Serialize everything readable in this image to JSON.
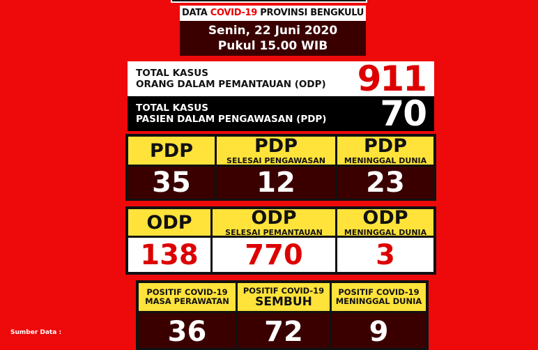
{
  "header": {
    "title_pre": "DATA ",
    "title_red": "COVID-19",
    "title_post": " PROVINSI BENGKULU",
    "date": "Senin, 22 Juni 2020",
    "time": "Pukul 15.00 WIB"
  },
  "totals": {
    "odp": {
      "line1": "TOTAL KASUS",
      "line2": "ORANG DALAM PEMANTAUAN (ODP)",
      "value": "911"
    },
    "pdp": {
      "line1": "TOTAL KASUS",
      "line2": "PASIEN DALAM PENGAWASAN (PDP)",
      "value": "70"
    }
  },
  "pdp_panel": [
    {
      "title": "PDP",
      "sub": "",
      "value": "35"
    },
    {
      "title": "PDP",
      "sub": "SELESAI PENGAWASAN",
      "value": "12"
    },
    {
      "title": "PDP",
      "sub": "MENINGGAL DUNIA",
      "value": "23"
    }
  ],
  "odp_panel": [
    {
      "title": "ODP",
      "sub": "",
      "value": "138"
    },
    {
      "title": "ODP",
      "sub": "SELESAI PEMANTAUAN",
      "value": "770"
    },
    {
      "title": "ODP",
      "sub": "MENINGGAL DUNIA",
      "value": "3"
    }
  ],
  "positive_panel": [
    {
      "title": "POSITIF COVID-19",
      "sub": "MASA PERAWATAN",
      "value": "36"
    },
    {
      "title": "POSITIF COVID-19",
      "sub": "SEMBUH",
      "value": "72"
    },
    {
      "title": "POSITIF COVID-19",
      "sub": "MENINGGAL DUNIA",
      "value": "9"
    }
  ],
  "source_label": "Sumber Data :",
  "colors": {
    "background": "#ee0a0a",
    "header_yellow": "#ffe33a",
    "dark_maroon": "#3a0000",
    "number_red": "#dd0000"
  }
}
